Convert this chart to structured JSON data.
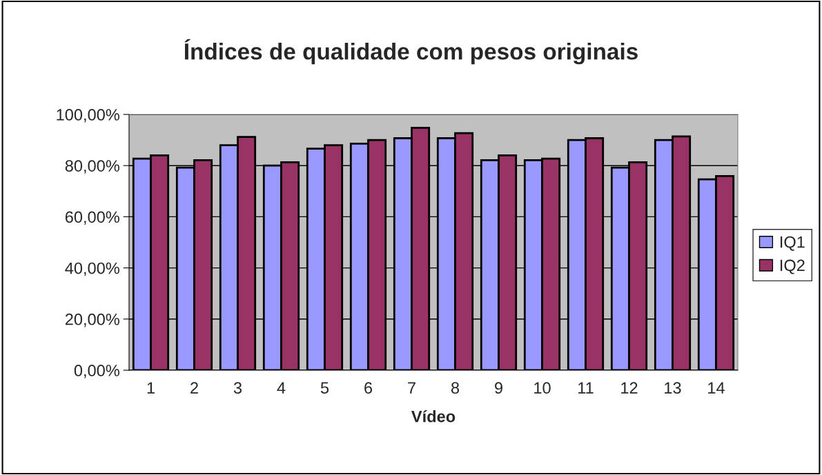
{
  "chart_data": {
    "type": "bar",
    "title": "Índices de qualidade com pesos originais",
    "xlabel": "Vídeo",
    "categories": [
      "1",
      "2",
      "3",
      "4",
      "5",
      "6",
      "7",
      "8",
      "9",
      "10",
      "11",
      "12",
      "13",
      "14"
    ],
    "series": [
      {
        "name": "IQ1",
        "color": "#9999ff",
        "values": [
          82.7,
          79.2,
          88.0,
          80.0,
          86.6,
          88.6,
          90.7,
          90.7,
          82.1,
          82.1,
          90.0,
          79.2,
          90.0,
          74.6
        ]
      },
      {
        "name": "IQ2",
        "color": "#993366",
        "values": [
          84.0,
          82.1,
          91.2,
          81.3,
          88.0,
          90.0,
          94.8,
          92.7,
          84.0,
          82.7,
          90.7,
          81.3,
          91.4,
          75.9
        ]
      }
    ],
    "ylim": [
      0,
      100
    ],
    "yticks": [
      {
        "value": 0,
        "label": "0,00%"
      },
      {
        "value": 20,
        "label": "20,00%"
      },
      {
        "value": 40,
        "label": "40,00%"
      },
      {
        "value": 60,
        "label": "60,00%"
      },
      {
        "value": 80,
        "label": "80,00%"
      },
      {
        "value": 100,
        "label": "100,00%"
      }
    ],
    "grid": "y",
    "legend": "right"
  }
}
